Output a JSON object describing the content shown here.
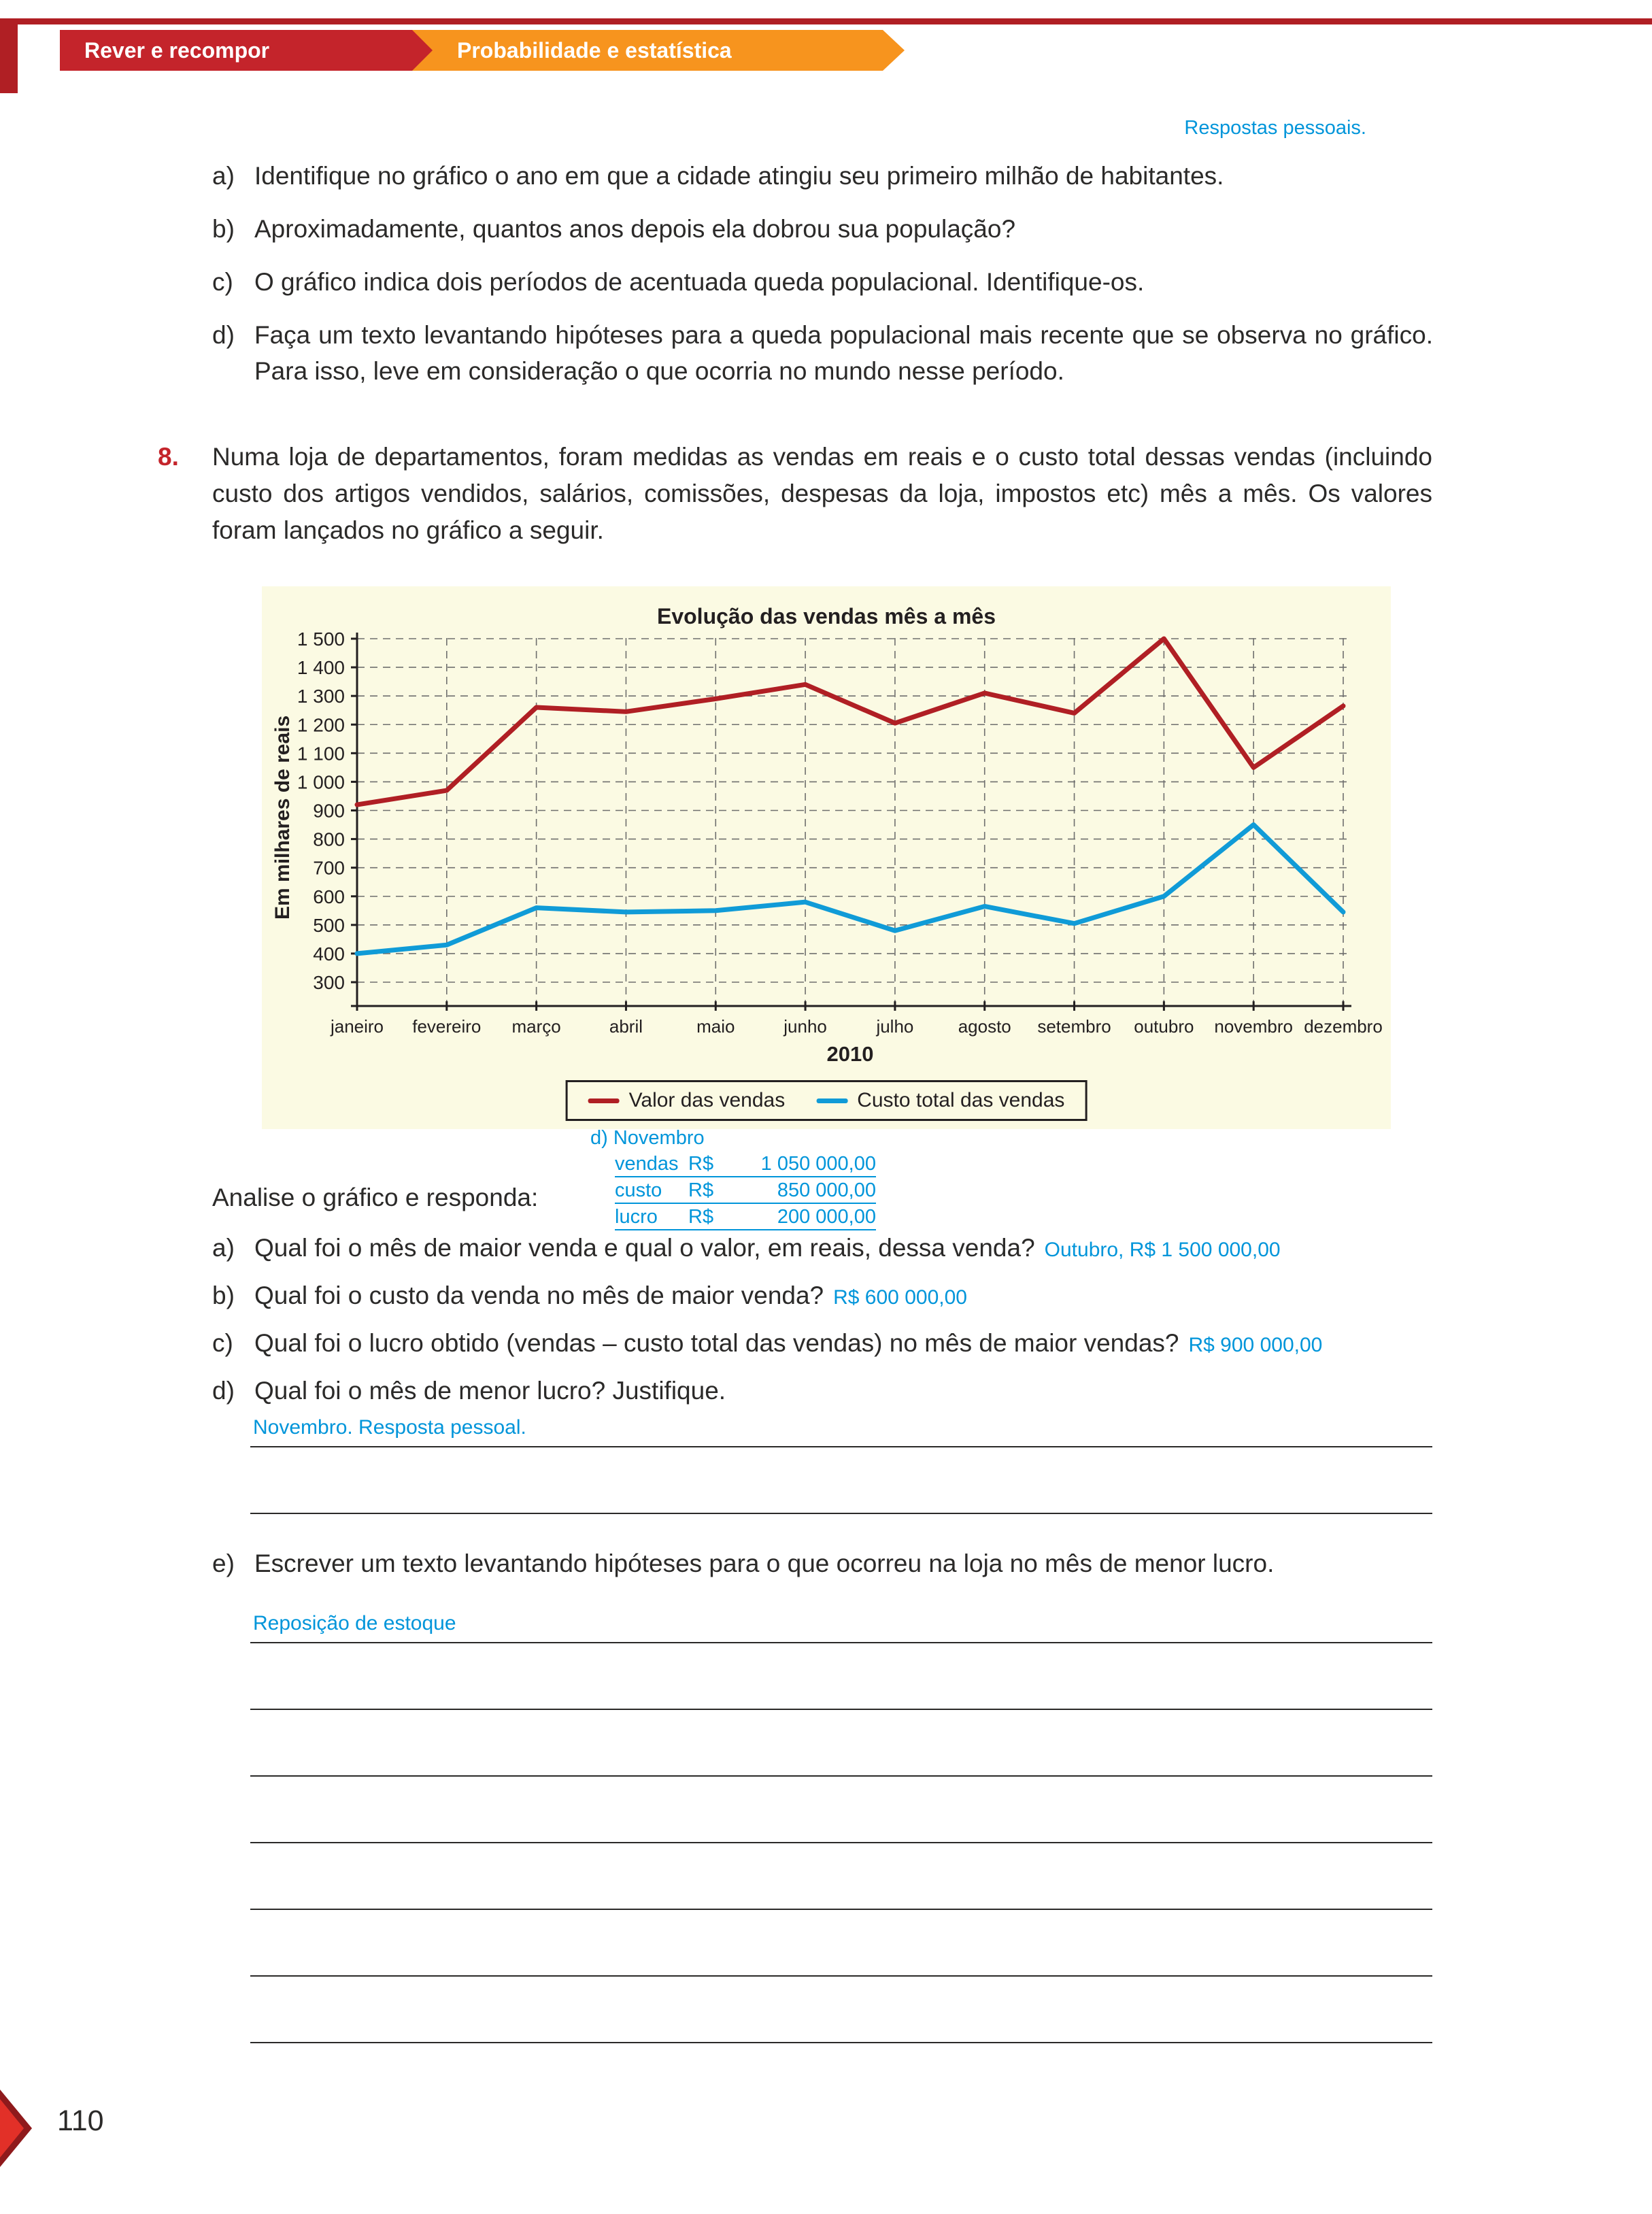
{
  "header": {
    "banner_left": "Rever e recompor",
    "banner_right": "Probabilidade e estatística",
    "annotation": "Respostas pessoais."
  },
  "exercise7": {
    "items": [
      {
        "label": "a)",
        "text": "Identifique no gráfico o ano em que a cidade atingiu seu primeiro milhão de habitantes."
      },
      {
        "label": "b)",
        "text": "Aproximadamente, quantos anos depois ela dobrou sua população?"
      },
      {
        "label": "c)",
        "text": "O gráfico indica dois períodos de acentuada queda populacional. Identifique-os."
      },
      {
        "label": "d)",
        "text": "Faça um texto levantando hipóteses para a queda populacional mais recente que se observa no gráfico. Para isso, leve em consideração o que ocorria no mundo nesse período."
      }
    ]
  },
  "exercise8": {
    "number": "8.",
    "statement": "Numa loja de departamentos, foram medidas as vendas em reais e o custo total dessas vendas (incluindo custo dos artigos vendidos, salários, comissões, despesas da loja, impostos etc) mês a mês. Os valores foram lançados no gráfico a seguir.",
    "prompt": "Analise o gráfico e responda:",
    "items": [
      {
        "label": "a)",
        "text": "Qual foi o mês de maior venda e qual o valor, em reais, dessa venda?",
        "answer": "Outubro, R$ 1 500 000,00"
      },
      {
        "label": "b)",
        "text": "Qual foi o custo da venda no mês de maior venda?",
        "answer": "R$ 600 000,00"
      },
      {
        "label": "c)",
        "text": "Qual foi o lucro obtido (vendas – custo total das vendas) no mês de maior vendas?",
        "answer": "R$ 900 000,00"
      },
      {
        "label": "d)",
        "text": "Qual foi o mês de menor lucro? Justifique.",
        "answer": "Novembro. Resposta pessoal."
      },
      {
        "label": "e)",
        "text": "Escrever um texto levantando hipóteses para o que ocorreu na loja no mês de menor lucro.",
        "answer": "Reposição de estoque"
      }
    ],
    "note": {
      "title": "d) Novembro",
      "rows": [
        {
          "label": "vendas",
          "currency": "R$",
          "value": "1 050 000,00"
        },
        {
          "label": "custo",
          "currency": "R$",
          "value": "850 000,00"
        },
        {
          "label": "lucro",
          "currency": "R$",
          "value": "200 000,00"
        }
      ]
    }
  },
  "chart_data": {
    "type": "line",
    "title": "Evolução das vendas mês a mês",
    "ylabel": "Em milhares de reais",
    "xlabel": "2010",
    "categories": [
      "janeiro",
      "fevereiro",
      "março",
      "abril",
      "maio",
      "junho",
      "julho",
      "agosto",
      "setembro",
      "outubro",
      "novembro",
      "dezembro"
    ],
    "yticks": [
      300,
      400,
      500,
      600,
      700,
      800,
      900,
      1000,
      1100,
      1200,
      1300,
      1400,
      1500
    ],
    "ylim": [
      300,
      1500
    ],
    "grid": true,
    "legend_position": "bottom",
    "series": [
      {
        "name": "Valor das vendas",
        "color": "#b01f24",
        "values": [
          920,
          970,
          1260,
          1245,
          1290,
          1340,
          1205,
          1310,
          1240,
          1500,
          1050,
          1265
        ]
      },
      {
        "name": "Custo total das vendas",
        "color": "#109bd7",
        "values": [
          400,
          430,
          560,
          545,
          550,
          580,
          480,
          565,
          505,
          600,
          850,
          545
        ]
      }
    ]
  },
  "footer": {
    "page_number": "110"
  },
  "colors": {
    "accent_red": "#c4242b",
    "accent_orange": "#f7941e",
    "answer_blue": "#0095da"
  }
}
